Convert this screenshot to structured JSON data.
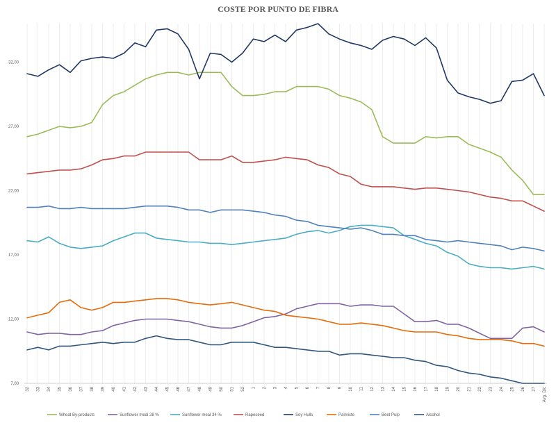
{
  "chart_data": {
    "type": "line",
    "title": "COSTE POR PUNTO DE FIBRA",
    "xlabel": "",
    "ylabel": "",
    "ylim": [
      7,
      35
    ],
    "yticks": [
      "7,00",
      "12,00",
      "17,00",
      "22,00",
      "27,00",
      "32,00"
    ],
    "grid": "vertical",
    "legend_position": "bottom",
    "x": [
      "32",
      "33",
      "34",
      "35",
      "36",
      "37",
      "38",
      "39",
      "40",
      "41",
      "42",
      "43",
      "44",
      "45",
      "46",
      "47",
      "48",
      "49",
      "50",
      "51",
      "52",
      "1",
      "2",
      "3",
      "4",
      "5",
      "6",
      "7",
      "8",
      "9",
      "10",
      "11",
      "12",
      "13",
      "14",
      "15",
      "16",
      "17",
      "18",
      "19",
      "20",
      "21",
      "22",
      "23",
      "24",
      "25",
      "26",
      "27",
      "Avg. Dic"
    ],
    "series": [
      {
        "name": "Wheat By-products",
        "color": "#9bbb59",
        "values": [
          26.2,
          26.4,
          26.7,
          27.0,
          26.9,
          27.0,
          27.3,
          28.7,
          29.4,
          29.7,
          30.2,
          30.7,
          31.0,
          31.2,
          31.2,
          31.0,
          31.2,
          31.2,
          31.2,
          30.1,
          29.4,
          29.4,
          29.5,
          29.7,
          29.7,
          30.1,
          30.1,
          30.1,
          29.9,
          29.4,
          29.2,
          28.9,
          28.3,
          26.2,
          25.7,
          25.7,
          25.7,
          26.2,
          26.1,
          26.2,
          26.2,
          25.6,
          25.3,
          25.0,
          24.6,
          23.6,
          22.8,
          21.7,
          21.7
        ]
      },
      {
        "name": "Sunflower meal 28 %",
        "color": "#8064a2",
        "values": [
          11.0,
          10.8,
          10.9,
          10.9,
          10.8,
          10.8,
          11.0,
          11.1,
          11.5,
          11.7,
          11.9,
          12.0,
          12.0,
          12.0,
          11.9,
          11.8,
          11.6,
          11.4,
          11.3,
          11.3,
          11.5,
          11.8,
          12.1,
          12.2,
          12.4,
          12.8,
          13.0,
          13.2,
          13.2,
          13.2,
          13.0,
          13.1,
          13.1,
          13.0,
          13.0,
          12.4,
          11.8,
          11.8,
          11.9,
          11.6,
          11.6,
          11.3,
          10.9,
          10.5,
          10.5,
          10.5,
          11.3,
          11.4,
          11.0
        ]
      },
      {
        "name": "Sunflower meal 34 %",
        "color": "#4bacc6",
        "values": [
          18.1,
          18.0,
          18.4,
          17.9,
          17.6,
          17.5,
          17.6,
          17.7,
          18.1,
          18.4,
          18.7,
          18.7,
          18.3,
          18.2,
          18.1,
          18.0,
          18.0,
          17.9,
          17.9,
          17.8,
          17.9,
          18.0,
          18.1,
          18.2,
          18.3,
          18.6,
          18.8,
          18.9,
          18.7,
          18.9,
          19.2,
          19.3,
          19.3,
          19.2,
          19.1,
          18.5,
          18.2,
          17.9,
          17.7,
          17.2,
          16.9,
          16.3,
          16.1,
          16.0,
          16.0,
          15.9,
          16.0,
          16.1,
          15.9
        ]
      },
      {
        "name": "Rapeseed",
        "color": "#c0504d",
        "values": [
          23.3,
          23.4,
          23.5,
          23.6,
          23.6,
          23.7,
          24.0,
          24.4,
          24.5,
          24.7,
          24.7,
          25.0,
          25.0,
          25.0,
          25.0,
          25.0,
          24.4,
          24.4,
          24.4,
          24.7,
          24.2,
          24.2,
          24.3,
          24.4,
          24.6,
          24.5,
          24.4,
          24.0,
          23.8,
          23.3,
          23.1,
          22.5,
          22.3,
          22.3,
          22.3,
          22.2,
          22.1,
          22.2,
          22.2,
          22.1,
          22.0,
          21.9,
          21.7,
          21.5,
          21.4,
          21.2,
          21.2,
          20.8,
          20.4
        ]
      },
      {
        "name": "Soy Hulls",
        "color": "#1f3864",
        "values": [
          31.1,
          30.9,
          31.4,
          31.8,
          31.2,
          32.1,
          32.3,
          32.4,
          32.3,
          32.7,
          33.5,
          33.2,
          34.5,
          34.6,
          34.2,
          33.0,
          30.7,
          32.7,
          32.6,
          32.0,
          32.7,
          33.8,
          33.6,
          34.1,
          33.6,
          34.5,
          34.7,
          35.0,
          34.2,
          33.8,
          33.5,
          33.3,
          33.0,
          33.7,
          34.0,
          33.8,
          33.3,
          33.9,
          33.1,
          30.6,
          29.6,
          29.3,
          29.1,
          28.8,
          29.0,
          30.5,
          30.6,
          31.1,
          29.4
        ]
      },
      {
        "name": "Palmiste",
        "color": "#e46c0a",
        "values": [
          12.1,
          12.3,
          12.5,
          13.3,
          13.5,
          12.9,
          12.7,
          12.9,
          13.3,
          13.3,
          13.4,
          13.5,
          13.6,
          13.6,
          13.5,
          13.3,
          13.2,
          13.1,
          13.2,
          13.3,
          13.1,
          12.9,
          12.7,
          12.6,
          12.3,
          12.2,
          12.1,
          12.0,
          11.8,
          11.6,
          11.6,
          11.7,
          11.6,
          11.5,
          11.3,
          11.1,
          11.0,
          11.0,
          11.0,
          10.8,
          10.7,
          10.5,
          10.4,
          10.4,
          10.4,
          10.3,
          10.1,
          10.1,
          9.9
        ]
      },
      {
        "name": "Beet Pulp",
        "color": "#4f81bd",
        "values": [
          20.7,
          20.7,
          20.8,
          20.6,
          20.6,
          20.7,
          20.6,
          20.6,
          20.6,
          20.6,
          20.7,
          20.8,
          20.8,
          20.8,
          20.7,
          20.5,
          20.5,
          20.3,
          20.5,
          20.5,
          20.5,
          20.4,
          20.3,
          20.1,
          20.0,
          19.7,
          19.6,
          19.3,
          19.2,
          19.1,
          19.0,
          19.1,
          18.9,
          18.6,
          18.6,
          18.5,
          18.5,
          18.2,
          18.1,
          18.0,
          18.1,
          18.0,
          17.9,
          17.8,
          17.7,
          17.4,
          17.6,
          17.5,
          17.3
        ]
      },
      {
        "name": "Alcohol",
        "color": "#30577e",
        "values": [
          9.6,
          9.8,
          9.6,
          9.9,
          9.9,
          10.0,
          10.1,
          10.2,
          10.1,
          10.2,
          10.2,
          10.5,
          10.7,
          10.5,
          10.4,
          10.4,
          10.2,
          10.0,
          10.0,
          10.2,
          10.2,
          10.2,
          10.0,
          9.8,
          9.8,
          9.7,
          9.6,
          9.5,
          9.5,
          9.2,
          9.3,
          9.3,
          9.2,
          9.1,
          9.0,
          9.0,
          8.8,
          8.7,
          8.4,
          8.3,
          8.0,
          7.8,
          7.7,
          7.5,
          7.4,
          7.2,
          7.0,
          7.0,
          7.0
        ]
      }
    ]
  }
}
